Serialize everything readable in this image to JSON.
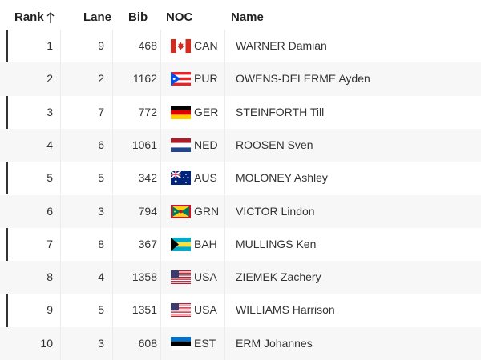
{
  "table": {
    "headers": [
      "Rank",
      "Lane",
      "Bib",
      "NOC",
      "Name"
    ],
    "rows": [
      [
        1,
        9,
        468,
        "CAN",
        "WARNER Damian"
      ],
      [
        2,
        2,
        1162,
        "PUR",
        "OWENS-DELERME Ayden"
      ],
      [
        3,
        7,
        772,
        "GER",
        "STEINFORTH Till"
      ],
      [
        4,
        6,
        1061,
        "NED",
        "ROOSEN Sven"
      ],
      [
        5,
        5,
        342,
        "AUS",
        "MOLONEY Ashley"
      ],
      [
        6,
        3,
        794,
        "GRN",
        "VICTOR Lindon"
      ],
      [
        7,
        8,
        367,
        "BAH",
        "MULLINGS Ken"
      ],
      [
        8,
        4,
        1358,
        "USA",
        "ZIEMEK Zachery"
      ],
      [
        9,
        5,
        1351,
        "USA",
        "WILLIAMS Harrison"
      ],
      [
        10,
        3,
        608,
        "EST",
        "ERM Johannes"
      ]
    ]
  }
}
